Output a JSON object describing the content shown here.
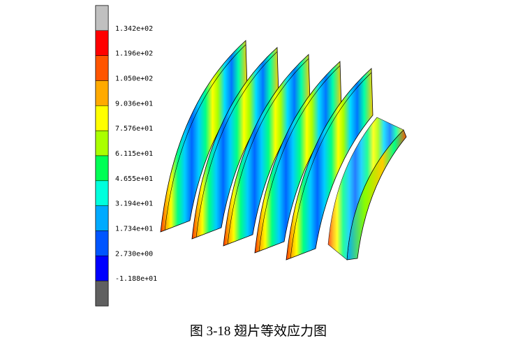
{
  "legend": {
    "colors": [
      "#c0c0c0",
      "#ff0000",
      "#ff5500",
      "#ffaa00",
      "#ffff00",
      "#aaff00",
      "#00ff55",
      "#00ffdd",
      "#00aaff",
      "#0055ff",
      "#0000ff",
      "#606060"
    ],
    "labels": [
      "1.342e+02",
      "1.196e+02",
      "1.050e+02",
      "9.036e+01",
      "7.576e+01",
      "6.115e+01",
      "4.655e+01",
      "3.194e+01",
      "1.734e+01",
      "2.730e+00",
      "-1.188e+01"
    ]
  },
  "caption": "图 3-18  翅片等效应力图"
}
